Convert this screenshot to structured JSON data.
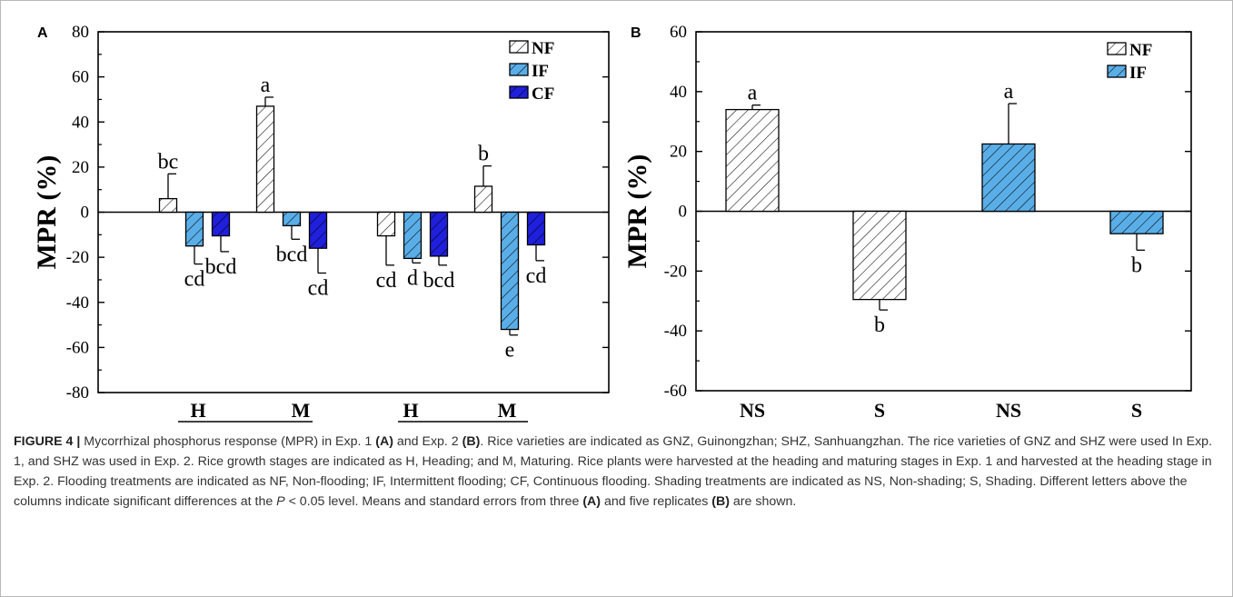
{
  "chart_data": [
    {
      "panel": "A",
      "type": "bar",
      "ylabel": "MPR (%)",
      "ylim": [
        -80,
        80
      ],
      "yticks": [
        -80,
        -60,
        -40,
        -20,
        0,
        20,
        40,
        60,
        80
      ],
      "series": [
        {
          "name": "NF",
          "color": "#ffffff",
          "hatch": "hatch-white"
        },
        {
          "name": "IF",
          "color": "#5aaee8",
          "hatch": "hatch-lightblue"
        },
        {
          "name": "CF",
          "color": "#1f1fdc",
          "hatch": "hatch-darkblue"
        }
      ],
      "groups": [
        {
          "stage": "H",
          "variety": "GNZ",
          "values": [
            6,
            -15,
            -10.5
          ],
          "errors": [
            11,
            8,
            7
          ],
          "letters": [
            "bc",
            "cd",
            "bcd"
          ]
        },
        {
          "stage": "M",
          "variety": "GNZ",
          "values": [
            47,
            -6,
            -16
          ],
          "errors": [
            4,
            6,
            11
          ],
          "letters": [
            "a",
            "bcd",
            "cd"
          ]
        },
        {
          "stage": "H",
          "variety": "SHZ",
          "values": [
            -10.5,
            -20.5,
            -19.5
          ],
          "errors": [
            13,
            2,
            4
          ],
          "letters": [
            "cd",
            "d",
            "bcd"
          ]
        },
        {
          "stage": "M",
          "variety": "SHZ",
          "values": [
            11.5,
            -52,
            -14.5
          ],
          "errors": [
            9,
            2.5,
            7
          ],
          "letters": [
            "b",
            "e",
            "cd"
          ]
        }
      ],
      "varieties": [
        "GNZ",
        "SHZ"
      ]
    },
    {
      "panel": "B",
      "type": "bar",
      "ylabel": "MPR (%)",
      "ylim": [
        -60,
        60
      ],
      "yticks": [
        -60,
        -40,
        -20,
        0,
        20,
        40,
        60
      ],
      "series": [
        {
          "name": "NF",
          "color": "#ffffff",
          "hatch": "hatch-white"
        },
        {
          "name": "IF",
          "color": "#5aaee8",
          "hatch": "hatch-lightblue"
        }
      ],
      "categories": [
        "NS",
        "S",
        "NS",
        "S"
      ],
      "bars": [
        {
          "category": "NS",
          "series": "NF",
          "value": 34,
          "error": 1.5,
          "letter": "a"
        },
        {
          "category": "S",
          "series": "NF",
          "value": -29.5,
          "error": 3.5,
          "letter": "b"
        },
        {
          "category": "NS",
          "series": "IF",
          "value": 22.5,
          "error": 13.5,
          "letter": "a"
        },
        {
          "category": "S",
          "series": "IF",
          "value": -7.5,
          "error": 5.5,
          "letter": "b"
        }
      ]
    }
  ],
  "caption": {
    "figure_label": "FIGURE 4 |",
    "text_parts": [
      " Mycorrhizal phosphorus response (MPR) in Exp. 1 ",
      "(A)",
      " and Exp. 2 ",
      "(B)",
      ". Rice varieties are indicated as GNZ, Guinongzhan; SHZ, Sanhuangzhan. The rice varieties of GNZ and SHZ were used In Exp. 1, and SHZ was used in Exp. 2. Rice growth stages are indicated as H, Heading; and M, Maturing. Rice plants were harvested at the heading and maturing stages in Exp. 1 and harvested at the heading stage in Exp. 2. Flooding treatments are indicated as NF, Non-flooding; IF, Intermittent flooding; CF, Continuous flooding. Shading treatments are indicated as NS, Non-shading; S, Shading. Different letters above the columns indicate significant differences at the ",
      "P",
      " < 0.05 level. Means and standard errors from three ",
      "(A)",
      " and five replicates ",
      "(B)",
      " are shown."
    ]
  }
}
